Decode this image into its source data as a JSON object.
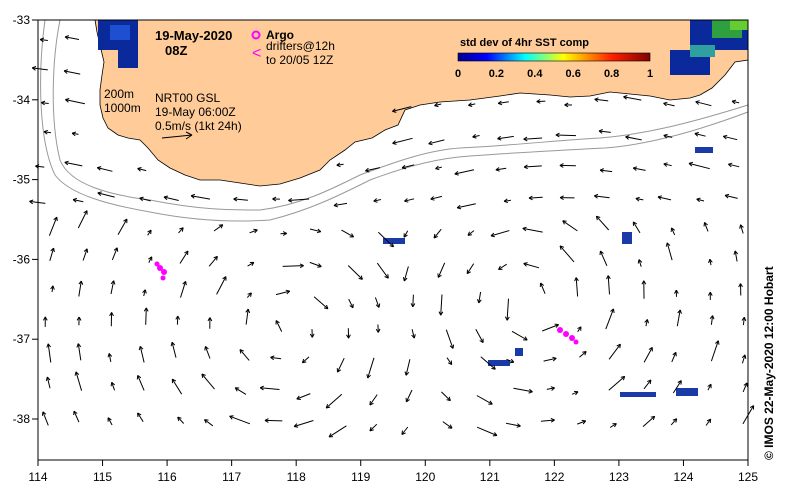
{
  "map": {
    "date": "19-May-2020",
    "time": "08Z",
    "argo_label": "Argo",
    "drifters_label": "drifters@12h",
    "drifters_to": "to 20/05 12Z",
    "contours_200": "200m",
    "contours_1000": "1000m",
    "product": "NRT00 GSL",
    "product_time": "19-May 06:00Z",
    "scale_label": "0.5m/s (1kt 24h)",
    "colorbar_title": "std dev of 4hr SST comp",
    "colorbar_ticks": [
      "0",
      "0.2",
      "0.4",
      "0.6",
      "0.8",
      "1"
    ],
    "credit": "© IMOS 22-May-2020 12:00 Hobart",
    "colors": {
      "land": "#ffcc99",
      "argo": "#ff00ff",
      "drifter": "#ff00ff"
    },
    "lon_ticks": [
      "114",
      "115",
      "116",
      "117",
      "118",
      "119",
      "120",
      "121",
      "122",
      "123",
      "124",
      "125"
    ],
    "lat_ticks": [
      "-33",
      "-34",
      "-35",
      "-36",
      "-37",
      "-38"
    ]
  }
}
